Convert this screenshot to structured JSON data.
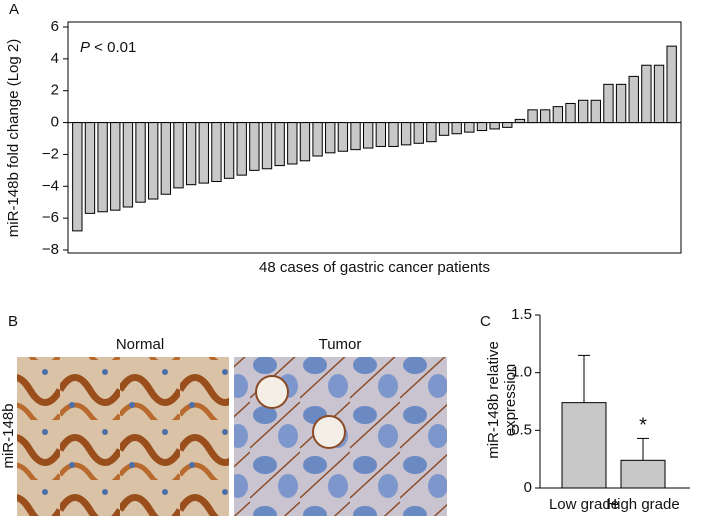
{
  "chart_data": [
    {
      "type": "bar",
      "panel_label": "A",
      "ylabel": "miR-148b fold change (Log 2)",
      "xlabel": "48 cases of gastric cancer patients",
      "annotation": "P < 0.01",
      "values": [
        -6.8,
        -5.7,
        -5.6,
        -5.5,
        -5.3,
        -5.0,
        -4.8,
        -4.5,
        -4.1,
        -3.9,
        -3.8,
        -3.7,
        -3.5,
        -3.3,
        -3.0,
        -2.9,
        -2.7,
        -2.6,
        -2.4,
        -2.1,
        -1.9,
        -1.8,
        -1.7,
        -1.6,
        -1.5,
        -1.5,
        -1.4,
        -1.3,
        -1.2,
        -0.8,
        -0.7,
        -0.6,
        -0.5,
        -0.4,
        -0.3,
        0.2,
        0.8,
        0.8,
        1.0,
        1.2,
        1.4,
        1.4,
        2.4,
        2.4,
        2.9,
        3.6,
        3.6,
        4.8
      ],
      "color": "#c8c8c8",
      "ylim": [
        -8,
        6
      ],
      "yticks": [
        {
          "value": -8,
          "label": "−8"
        },
        {
          "value": -6,
          "label": "−6"
        },
        {
          "value": -4,
          "label": "−4"
        },
        {
          "value": -2,
          "label": "−2"
        },
        0,
        2,
        4,
        6
      ]
    },
    {
      "type": "bar",
      "panel_label": "C",
      "ylabel": [
        "miR-148b relative",
        "expression"
      ],
      "annotation": "*",
      "categories": [
        "Low grade",
        "High grade"
      ],
      "values": [
        0.74,
        0.24
      ],
      "errors": [
        0.41,
        0.19
      ],
      "color": "#c8c8c8",
      "ylim": [
        0,
        1.5
      ],
      "yticks": [
        0,
        0.5,
        {
          "value": 1.0,
          "label": "1.0"
        },
        1.5
      ]
    }
  ],
  "image_panel": {
    "panel_label": "B",
    "ylabel": "miR-148b",
    "captions": [
      "Normal",
      "Tumor"
    ]
  }
}
